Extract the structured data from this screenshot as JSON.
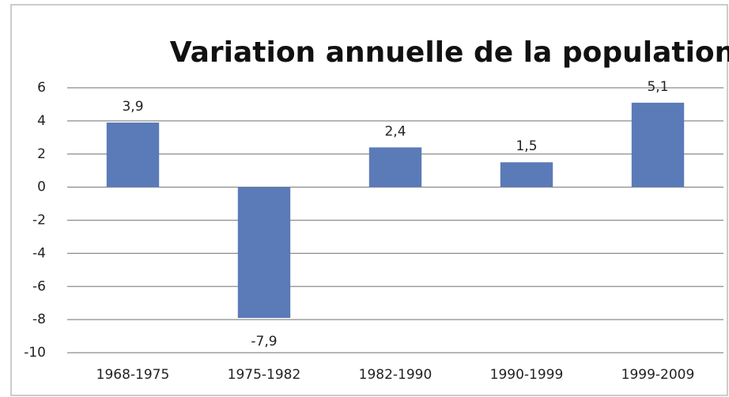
{
  "chart_data": {
    "type": "bar",
    "title": "Variation annuelle de la population",
    "categories": [
      "1968-1975",
      "1975-1982",
      "1982-1990",
      "1990-1999",
      "1999-2009"
    ],
    "values": [
      3.9,
      -7.9,
      2.4,
      1.5,
      5.1
    ],
    "value_labels": [
      "3,9",
      "-7,9",
      "2,4",
      "1,5",
      "5,1"
    ],
    "color": "#5b7ab8",
    "ylim": [
      -10,
      6
    ],
    "yticks": [
      -10,
      -8,
      -6,
      -4,
      -2,
      0,
      2,
      4,
      6
    ],
    "grid": true
  }
}
